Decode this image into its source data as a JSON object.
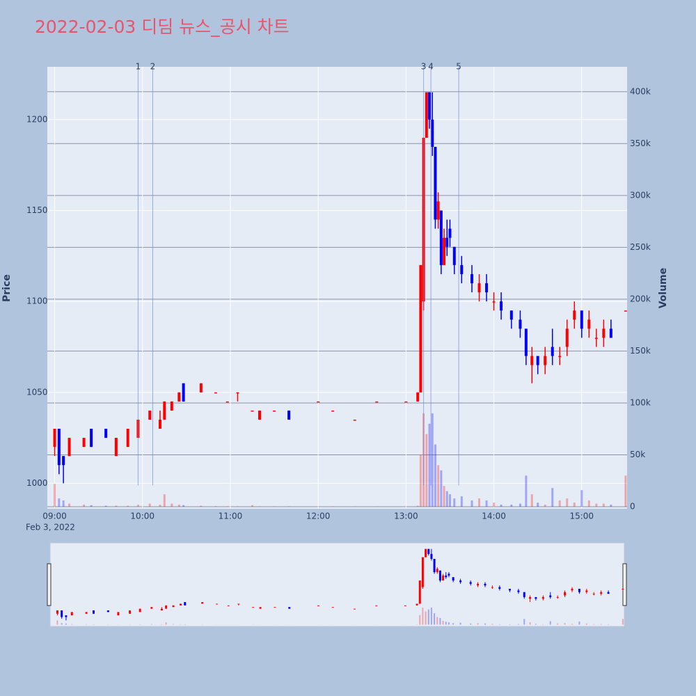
{
  "chart_data": {
    "type": "candlestick",
    "title": "2022-02-03 디딤 뉴스_공시 차트",
    "y_label": "Price",
    "y2_label": "Volume",
    "x_date_label": "Feb 3, 2022",
    "increasing_color": "#ff0000",
    "decreasing_color": "#0000ff",
    "xlim": [
      "08:55",
      "15:31"
    ],
    "xticks": [
      "09:00",
      "10:00",
      "11:00",
      "12:00",
      "13:00",
      "14:00",
      "15:00"
    ],
    "ylim": [
      986,
      1229
    ],
    "yticks": [
      1000,
      1050,
      1100,
      1150,
      1200
    ],
    "y2lim": [
      -2000,
      424000
    ],
    "y2ticks": [
      0,
      {
        "value": 50000,
        "label": "50k"
      },
      {
        "value": 100000,
        "label": "100k"
      },
      {
        "value": 150000,
        "label": "150k"
      },
      {
        "value": 200000,
        "label": "200k"
      },
      {
        "value": 250000,
        "label": "250k"
      },
      {
        "value": 300000,
        "label": "300k"
      },
      {
        "value": 350000,
        "label": "350k"
      },
      {
        "value": 400000,
        "label": "400k"
      }
    ],
    "annotations": [
      {
        "x": "09:57",
        "label": "1"
      },
      {
        "x": "10:07",
        "label": "2"
      },
      {
        "x": "13:12",
        "label": "3"
      },
      {
        "x": "13:17",
        "label": "4"
      },
      {
        "x": "13:36",
        "label": "5"
      }
    ],
    "x": [
      "09:00",
      "09:03",
      "09:06",
      "09:10",
      "09:20",
      "09:25",
      "09:35",
      "09:42",
      "09:50",
      "09:57",
      "10:05",
      "10:12",
      "10:15",
      "10:20",
      "10:25",
      "10:28",
      "10:40",
      "10:50",
      "10:58",
      "11:05",
      "11:15",
      "11:20",
      "11:30",
      "11:40",
      "12:00",
      "12:10",
      "12:25",
      "12:40",
      "13:00",
      "13:08",
      "13:10",
      "13:12",
      "13:14",
      "13:16",
      "13:18",
      "13:20",
      "13:22",
      "13:24",
      "13:26",
      "13:28",
      "13:30",
      "13:33",
      "13:38",
      "13:45",
      "13:50",
      "13:55",
      "14:00",
      "14:05",
      "14:12",
      "14:18",
      "14:22",
      "14:26",
      "14:30",
      "14:35",
      "14:40",
      "14:45",
      "14:50",
      "14:55",
      "15:00",
      "15:05",
      "15:10",
      "15:15",
      "15:20",
      "15:30"
    ],
    "open": [
      1020,
      1030,
      1015,
      1015,
      1020,
      1030,
      1030,
      1015,
      1020,
      1025,
      1035,
      1030,
      1035,
      1040,
      1045,
      1055,
      1050,
      1050,
      1045,
      1050,
      1040,
      1035,
      1040,
      1040,
      1045,
      1040,
      1035,
      1045,
      1045,
      1045,
      1050,
      1100,
      1190,
      1215,
      1200,
      1185,
      1145,
      1150,
      1120,
      1135,
      1140,
      1130,
      1120,
      1115,
      1105,
      1110,
      1100,
      1100,
      1095,
      1090,
      1085,
      1065,
      1070,
      1065,
      1075,
      1070,
      1075,
      1090,
      1095,
      1085,
      1080,
      1080,
      1085,
      1095
    ],
    "high": [
      1030,
      1030,
      1015,
      1025,
      1025,
      1030,
      1030,
      1025,
      1030,
      1035,
      1040,
      1040,
      1045,
      1045,
      1050,
      1055,
      1055,
      1050,
      1045,
      1050,
      1040,
      1040,
      1040,
      1040,
      1045,
      1040,
      1035,
      1045,
      1045,
      1050,
      1120,
      1190,
      1215,
      1215,
      1215,
      1185,
      1160,
      1150,
      1140,
      1145,
      1145,
      1130,
      1125,
      1120,
      1115,
      1115,
      1105,
      1105,
      1095,
      1095,
      1085,
      1075,
      1070,
      1075,
      1085,
      1075,
      1090,
      1100,
      1095,
      1095,
      1085,
      1090,
      1090,
      1095
    ],
    "low": [
      1015,
      1005,
      1000,
      1015,
      1020,
      1020,
      1025,
      1015,
      1020,
      1025,
      1035,
      1030,
      1035,
      1040,
      1045,
      1045,
      1050,
      1050,
      1045,
      1045,
      1040,
      1035,
      1040,
      1035,
      1045,
      1040,
      1035,
      1045,
      1045,
      1045,
      1050,
      1095,
      1190,
      1195,
      1180,
      1140,
      1140,
      1115,
      1120,
      1125,
      1130,
      1115,
      1110,
      1105,
      1100,
      1100,
      1095,
      1090,
      1085,
      1080,
      1065,
      1055,
      1060,
      1060,
      1065,
      1065,
      1070,
      1085,
      1080,
      1080,
      1075,
      1075,
      1080,
      1095
    ],
    "close": [
      1030,
      1010,
      1010,
      1025,
      1025,
      1020,
      1025,
      1025,
      1030,
      1035,
      1040,
      1035,
      1045,
      1045,
      1050,
      1045,
      1055,
      1050,
      1045,
      1050,
      1040,
      1040,
      1040,
      1035,
      1045,
      1040,
      1035,
      1045,
      1045,
      1050,
      1120,
      1190,
      1215,
      1200,
      1185,
      1145,
      1155,
      1120,
      1135,
      1130,
      1135,
      1120,
      1115,
      1110,
      1110,
      1105,
      1100,
      1095,
      1090,
      1085,
      1070,
      1070,
      1065,
      1070,
      1070,
      1070,
      1085,
      1095,
      1085,
      1090,
      1080,
      1085,
      1080,
      1095
    ],
    "volume": [
      22000,
      8000,
      6000,
      3000,
      2000,
      1500,
      1000,
      1000,
      1000,
      2000,
      3000,
      2000,
      12000,
      3000,
      2000,
      1500,
      1000,
      500,
      400,
      300,
      1500,
      300,
      300,
      300,
      200,
      300,
      200,
      200,
      200,
      1000,
      50000,
      90000,
      70000,
      80000,
      90000,
      60000,
      40000,
      35000,
      20000,
      15000,
      12000,
      8000,
      10000,
      6000,
      8000,
      6000,
      4000,
      2000,
      2000,
      3000,
      30000,
      12000,
      4000,
      2000,
      18000,
      6000,
      8000,
      4000,
      16000,
      6000,
      3000,
      3000,
      2000,
      30000
    ]
  }
}
